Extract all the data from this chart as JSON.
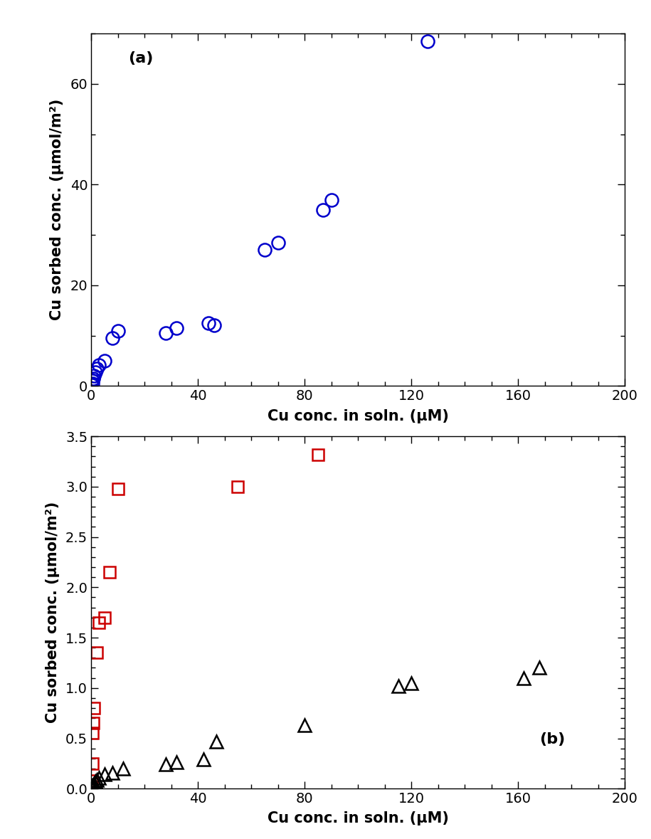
{
  "panel_a_label": "(a)",
  "panel_b_label": "(b)",
  "xlabel": "Cu conc. in soln. (μM)",
  "ylabel": "Cu sorbed conc. (μmol/m²)",
  "panel_a": {
    "x": [
      0.2,
      0.4,
      0.6,
      0.8,
      1.0,
      1.5,
      2.0,
      3.0,
      5.0,
      8.0,
      10.0,
      28.0,
      32.0,
      44.0,
      46.0,
      65.0,
      70.0,
      87.0,
      90.0,
      126.0
    ],
    "y": [
      0.2,
      0.5,
      1.0,
      1.5,
      2.0,
      2.8,
      3.5,
      4.2,
      5.0,
      9.5,
      11.0,
      10.5,
      11.5,
      12.5,
      12.0,
      27.0,
      28.5,
      35.0,
      37.0,
      68.5
    ],
    "color": "#0000cc",
    "marker": "o",
    "markersize": 13,
    "xlim": [
      0,
      200
    ],
    "ylim": [
      0,
      70
    ],
    "yticks": [
      0,
      20,
      40,
      60
    ],
    "xticks": [
      0,
      40,
      80,
      120,
      160,
      200
    ]
  },
  "panel_b_illite": {
    "x": [
      0.2,
      0.4,
      0.6,
      0.8,
      1.0,
      2.0,
      3.0,
      5.0,
      7.0,
      10.0,
      55.0,
      85.0
    ],
    "y": [
      0.08,
      0.25,
      0.55,
      0.65,
      0.8,
      1.35,
      1.65,
      1.7,
      2.15,
      2.98,
      3.0,
      3.32
    ],
    "color": "#cc0000",
    "marker": "s",
    "markersize": 11
  },
  "panel_b_kaolinite": {
    "x": [
      0.2,
      0.4,
      0.6,
      0.8,
      1.0,
      1.5,
      2.0,
      3.0,
      5.0,
      8.0,
      12.0,
      28.0,
      32.0,
      42.0,
      47.0,
      80.0,
      115.0,
      120.0,
      162.0,
      168.0
    ],
    "y": [
      0.01,
      0.02,
      0.03,
      0.04,
      0.05,
      0.07,
      0.09,
      0.11,
      0.14,
      0.16,
      0.2,
      0.24,
      0.26,
      0.29,
      0.47,
      0.63,
      1.02,
      1.05,
      1.1,
      1.2
    ],
    "color": "#000000",
    "marker": "^",
    "markersize": 13
  },
  "panel_b": {
    "xlim": [
      0,
      200
    ],
    "ylim": [
      0,
      3.5
    ],
    "yticks": [
      0.0,
      0.5,
      1.0,
      1.5,
      2.0,
      2.5,
      3.0,
      3.5
    ],
    "xticks": [
      0,
      40,
      80,
      120,
      160,
      200
    ]
  },
  "figure_bg": "#ffffff",
  "tick_label_fontsize": 14,
  "axis_label_fontsize": 15,
  "panel_label_fontsize": 16
}
